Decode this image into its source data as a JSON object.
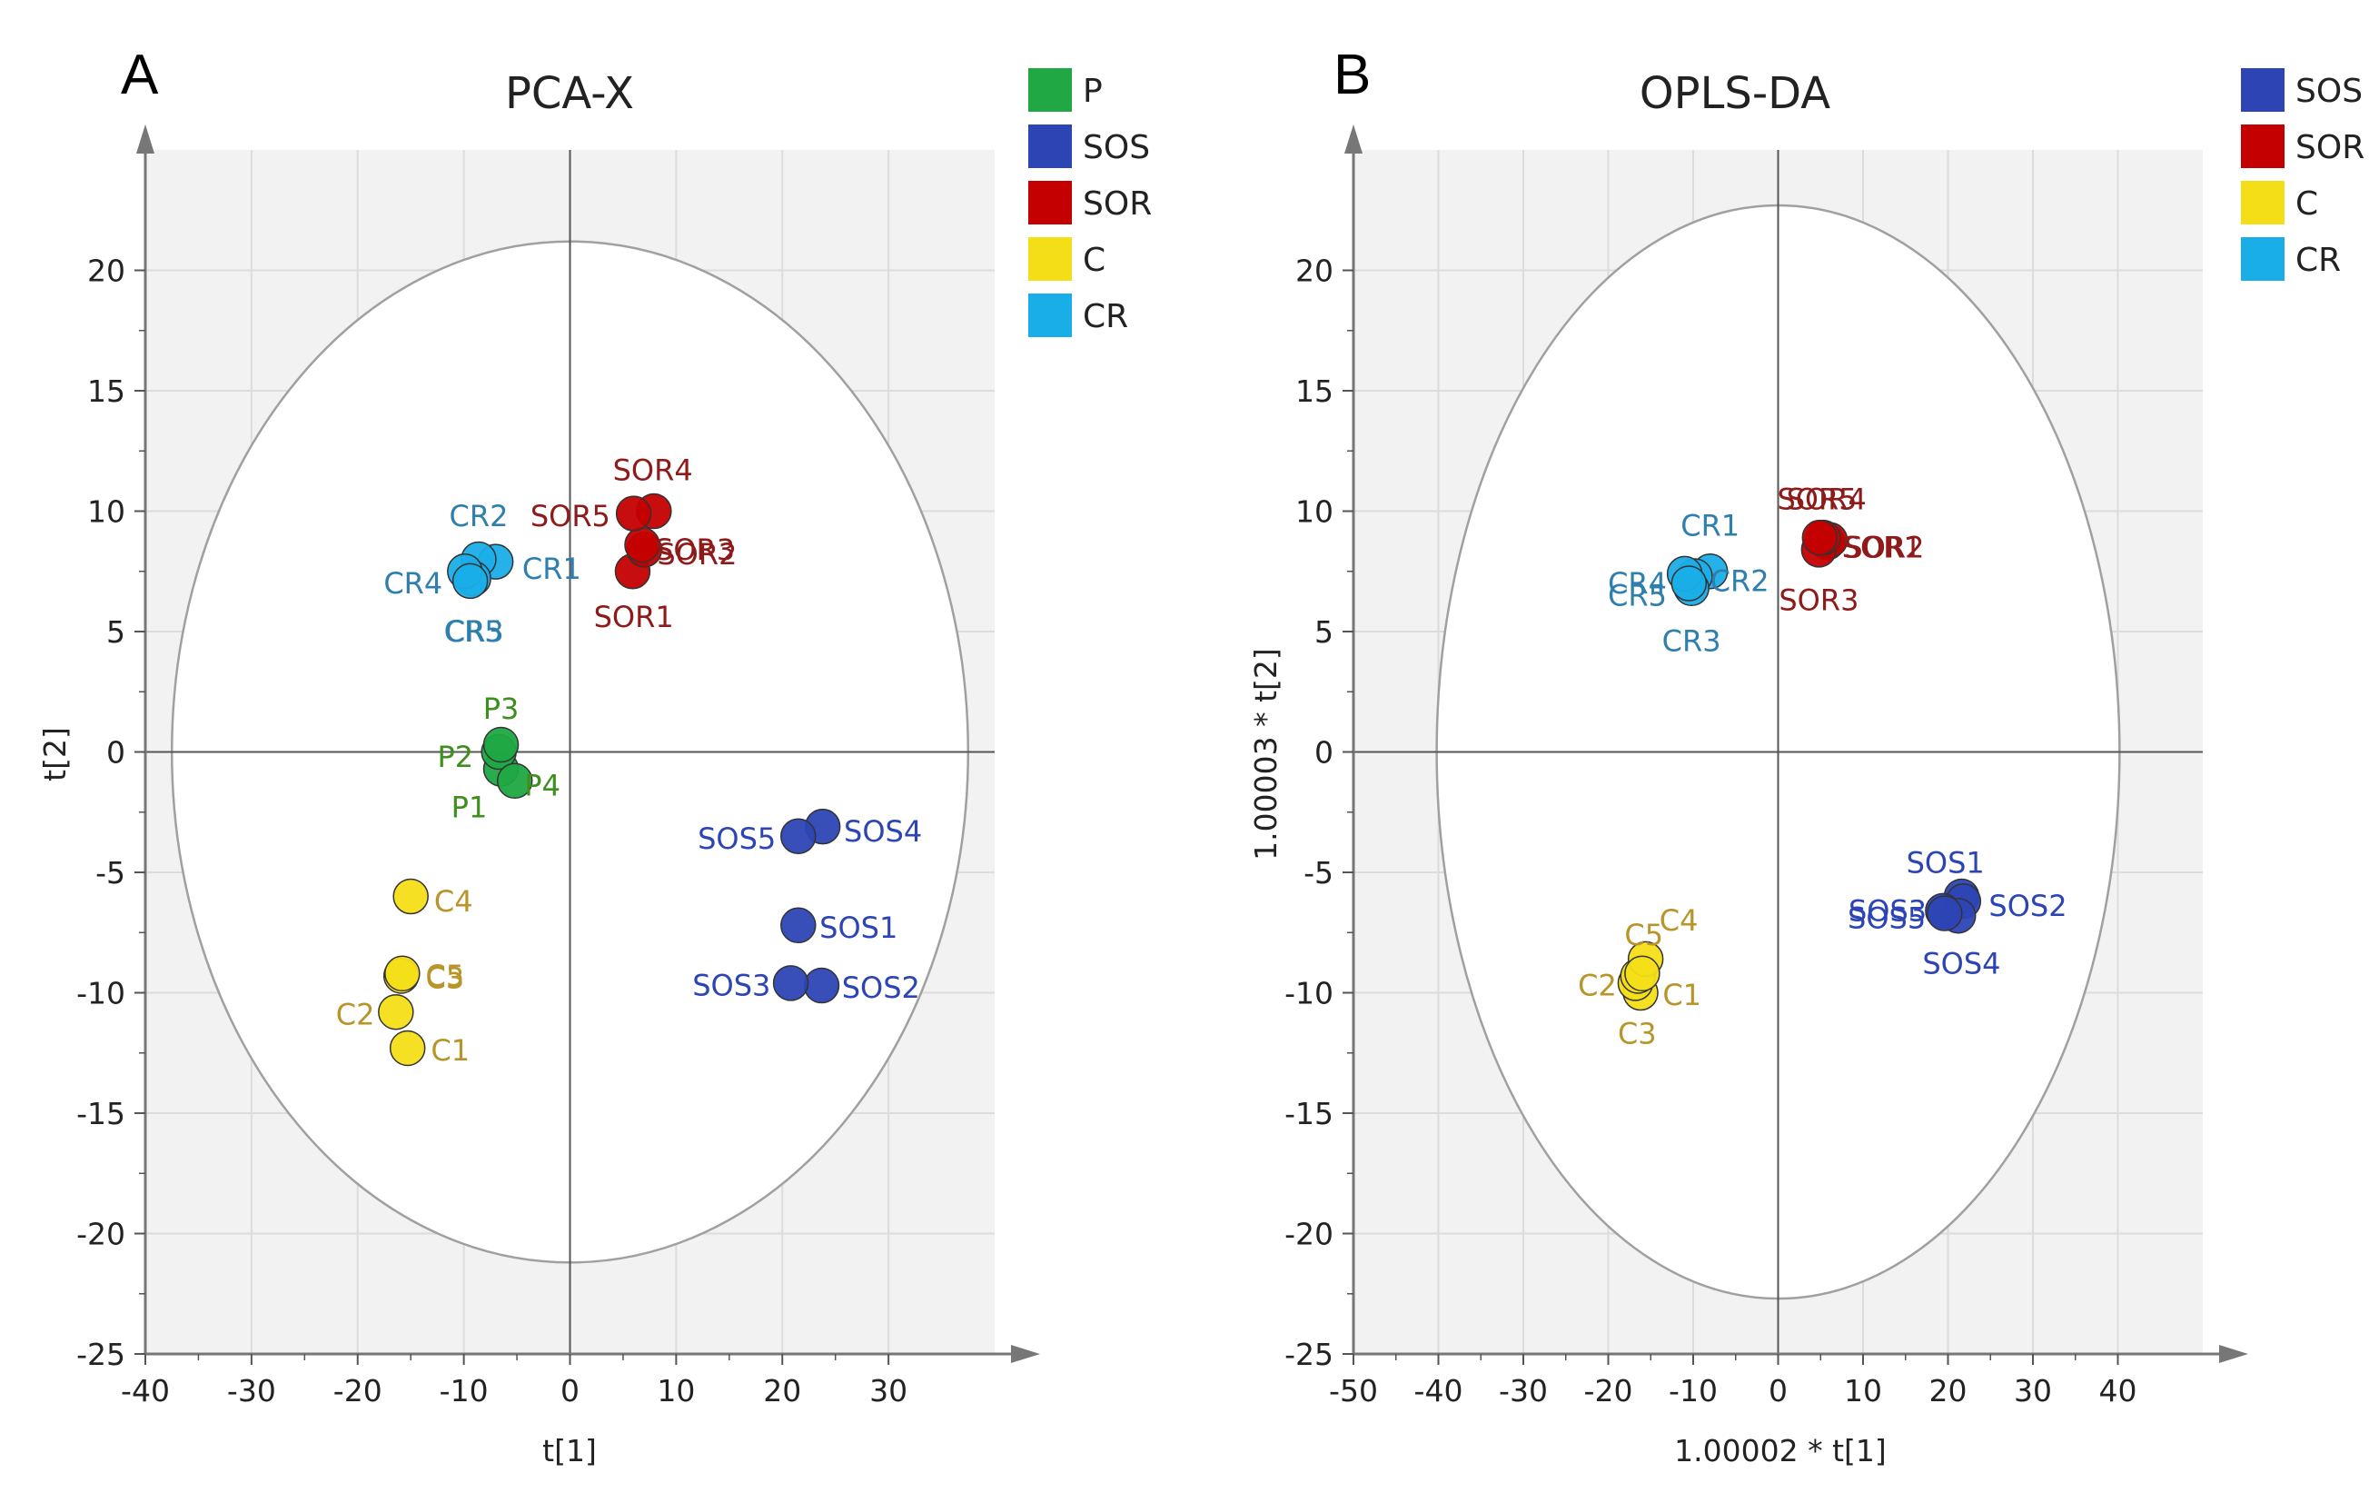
{
  "chart_data": [
    {
      "type": "scatter",
      "panel": "A",
      "title": "PCA-X",
      "xlabel": "t[1]",
      "ylabel": "t[2]",
      "xlim": [
        -40,
        40
      ],
      "ylim": [
        -25,
        25
      ],
      "xticks": [
        -40,
        -30,
        -20,
        -10,
        0,
        10,
        20,
        30
      ],
      "yticks": [
        -25,
        -20,
        -15,
        -10,
        -5,
        0,
        5,
        10,
        15,
        20
      ],
      "ellipse": {
        "rx": 37.5,
        "ry": 21.2
      },
      "grid": true,
      "legend": [
        {
          "label": "P",
          "color": "#1fa843"
        },
        {
          "label": "SOS",
          "color": "#2d44b5"
        },
        {
          "label": "SOR",
          "color": "#c40000"
        },
        {
          "label": "C",
          "color": "#f4de18"
        },
        {
          "label": "CR",
          "color": "#1aaee8"
        }
      ],
      "series": [
        {
          "name": "P",
          "color": "#1fa843",
          "label_color": "#3e8f1f",
          "points": [
            {
              "label": "P1",
              "x": -6.5,
              "y": -0.7,
              "lx": -9.5,
              "ly": -2.3,
              "anchor": "middle"
            },
            {
              "label": "P2",
              "x": -6.7,
              "y": 0.0,
              "lx": -10.8,
              "ly": -0.2,
              "anchor": "middle"
            },
            {
              "label": "P3",
              "x": -6.5,
              "y": 0.3,
              "lx": -6.5,
              "ly": 1.8,
              "anchor": "middle"
            },
            {
              "label": "P4",
              "x": -5.2,
              "y": -1.2,
              "lx": -2.6,
              "ly": -1.4,
              "anchor": "middle"
            }
          ]
        },
        {
          "name": "SOS",
          "color": "#2d44b5",
          "label_color": "#2d44b5",
          "points": [
            {
              "label": "SOS1",
              "x": 21.5,
              "y": -7.2,
              "lx": 23.5,
              "ly": -7.3,
              "anchor": "start"
            },
            {
              "label": "SOS2",
              "x": 23.7,
              "y": -9.7,
              "lx": 25.6,
              "ly": -9.8,
              "anchor": "start"
            },
            {
              "label": "SOS3",
              "x": 20.8,
              "y": -9.6,
              "lx": 18.9,
              "ly": -9.7,
              "anchor": "end"
            },
            {
              "label": "SOS4",
              "x": 23.8,
              "y": -3.1,
              "lx": 25.8,
              "ly": -3.3,
              "anchor": "start"
            },
            {
              "label": "SOS5",
              "x": 21.5,
              "y": -3.5,
              "lx": 19.4,
              "ly": -3.6,
              "anchor": "end"
            }
          ]
        },
        {
          "name": "SOR",
          "color": "#c40000",
          "label_color": "#8e1a1a",
          "points": [
            {
              "label": "SOR1",
              "x": 5.9,
              "y": 7.5,
              "lx": 6.0,
              "ly": 5.6,
              "anchor": "middle"
            },
            {
              "label": "SOR2",
              "x": 7.0,
              "y": 8.4,
              "lx": 8.2,
              "ly": 8.2,
              "anchor": "start"
            },
            {
              "label": "SOR3",
              "x": 6.8,
              "y": 8.6,
              "lx": 8.0,
              "ly": 8.4,
              "anchor": "start"
            },
            {
              "label": "SOR4",
              "x": 7.9,
              "y": 10.0,
              "lx": 7.8,
              "ly": 11.7,
              "anchor": "middle"
            },
            {
              "label": "SOR5",
              "x": 6.0,
              "y": 9.9,
              "lx": 3.8,
              "ly": 9.8,
              "anchor": "end"
            }
          ]
        },
        {
          "name": "C",
          "color": "#f4de18",
          "label_color": "#b8952a",
          "points": [
            {
              "label": "C1",
              "x": -15.3,
              "y": -12.3,
              "lx": -13.1,
              "ly": -12.4,
              "anchor": "start"
            },
            {
              "label": "C2",
              "x": -16.4,
              "y": -10.8,
              "lx": -18.4,
              "ly": -10.9,
              "anchor": "end"
            },
            {
              "label": "C3",
              "x": -15.9,
              "y": -9.3,
              "lx": -13.6,
              "ly": -9.4,
              "anchor": "start"
            },
            {
              "label": "C4",
              "x": -15.0,
              "y": -6.0,
              "lx": -12.8,
              "ly": -6.2,
              "anchor": "start"
            },
            {
              "label": "C5",
              "x": -15.8,
              "y": -9.2,
              "lx": -13.6,
              "ly": -9.3,
              "anchor": "start"
            }
          ]
        },
        {
          "name": "CR",
          "color": "#1aaee8",
          "label_color": "#2f7fae",
          "points": [
            {
              "label": "CR1",
              "x": -7.0,
              "y": 7.9,
              "lx": -4.5,
              "ly": 7.6,
              "anchor": "start"
            },
            {
              "label": "CR2",
              "x": -8.6,
              "y": 8.0,
              "lx": -8.6,
              "ly": 9.8,
              "anchor": "middle"
            },
            {
              "label": "CR3",
              "x": -9.1,
              "y": 7.2,
              "lx": -9.0,
              "ly": 5.0,
              "anchor": "middle"
            },
            {
              "label": "CR4",
              "x": -9.9,
              "y": 7.5,
              "lx": -12.0,
              "ly": 7.0,
              "anchor": "end"
            },
            {
              "label": "CR5",
              "x": -9.4,
              "y": 7.1,
              "lx": -9.1,
              "ly": 5.0,
              "anchor": "middle"
            }
          ]
        }
      ]
    },
    {
      "type": "scatter",
      "panel": "B",
      "title": "OPLS-DA",
      "xlabel": "1.00002 * t[1]",
      "ylabel": "1.00003 * t[2]",
      "xlim": [
        -50,
        50
      ],
      "ylim": [
        -25,
        25
      ],
      "xticks": [
        -50,
        -40,
        -30,
        -20,
        -10,
        0,
        10,
        20,
        30,
        40
      ],
      "yticks": [
        -25,
        -20,
        -15,
        -10,
        -5,
        0,
        5,
        10,
        15,
        20
      ],
      "ellipse": {
        "rx": 40.2,
        "ry": 22.7
      },
      "grid": true,
      "legend": [
        {
          "label": "SOS",
          "color": "#2d44b5"
        },
        {
          "label": "SOR",
          "color": "#c40000"
        },
        {
          "label": "C",
          "color": "#f4de18"
        },
        {
          "label": "CR",
          "color": "#1aaee8"
        }
      ],
      "series": [
        {
          "name": "SOS",
          "color": "#2d44b5",
          "label_color": "#2d44b5",
          "points": [
            {
              "label": "SOS1",
              "x": 21.6,
              "y": -6.0,
              "lx": 19.7,
              "ly": -4.6,
              "anchor": "middle"
            },
            {
              "label": "SOS2",
              "x": 21.8,
              "y": -6.2,
              "lx": 24.8,
              "ly": -6.4,
              "anchor": "start"
            },
            {
              "label": "SOS3",
              "x": 19.4,
              "y": -6.6,
              "lx": 17.5,
              "ly": -6.6,
              "anchor": "end"
            },
            {
              "label": "SOS4",
              "x": 21.2,
              "y": -6.8,
              "lx": 21.6,
              "ly": -8.8,
              "anchor": "middle"
            },
            {
              "label": "SOS5",
              "x": 19.6,
              "y": -6.7,
              "lx": 17.4,
              "ly": -6.9,
              "anchor": "end"
            }
          ]
        },
        {
          "name": "SOR",
          "color": "#c40000",
          "label_color": "#8e1a1a",
          "points": [
            {
              "label": "SOR1",
              "x": 5.8,
              "y": 8.7,
              "lx": 7.5,
              "ly": 8.5,
              "anchor": "start"
            },
            {
              "label": "SOR2",
              "x": 6.1,
              "y": 8.8,
              "lx": 7.8,
              "ly": 8.5,
              "anchor": "start"
            },
            {
              "label": "SOR3",
              "x": 4.8,
              "y": 8.4,
              "lx": 4.8,
              "ly": 6.3,
              "anchor": "middle"
            },
            {
              "label": "SOR4",
              "x": 5.3,
              "y": 8.9,
              "lx": 5.7,
              "ly": 10.5,
              "anchor": "middle"
            },
            {
              "label": "SOR5",
              "x": 4.9,
              "y": 8.9,
              "lx": 4.6,
              "ly": 10.5,
              "anchor": "middle"
            }
          ]
        },
        {
          "name": "C",
          "color": "#f4de18",
          "label_color": "#b8952a",
          "points": [
            {
              "label": "C1",
              "x": -16.2,
              "y": -10.0,
              "lx": -13.6,
              "ly": -10.1,
              "anchor": "start"
            },
            {
              "label": "C2",
              "x": -16.8,
              "y": -9.6,
              "lx": -19.0,
              "ly": -9.7,
              "anchor": "end"
            },
            {
              "label": "C3",
              "x": -16.5,
              "y": -9.3,
              "lx": -16.6,
              "ly": -11.7,
              "anchor": "middle"
            },
            {
              "label": "C4",
              "x": -15.6,
              "y": -8.6,
              "lx": -11.7,
              "ly": -7.0,
              "anchor": "middle"
            },
            {
              "label": "C5",
              "x": -16.0,
              "y": -9.2,
              "lx": -15.8,
              "ly": -7.6,
              "anchor": "middle"
            }
          ]
        },
        {
          "name": "CR",
          "color": "#1aaee8",
          "label_color": "#2f7fae",
          "points": [
            {
              "label": "CR1",
              "x": -8.0,
              "y": 7.5,
              "lx": -8.0,
              "ly": 9.4,
              "anchor": "middle"
            },
            {
              "label": "CR2",
              "x": -9.8,
              "y": 7.3,
              "lx": -8.0,
              "ly": 7.1,
              "anchor": "start"
            },
            {
              "label": "CR3",
              "x": -10.2,
              "y": 6.8,
              "lx": -10.2,
              "ly": 4.6,
              "anchor": "middle"
            },
            {
              "label": "CR4",
              "x": -11.0,
              "y": 7.4,
              "lx": -13.1,
              "ly": 7.0,
              "anchor": "end"
            },
            {
              "label": "CR5",
              "x": -10.5,
              "y": 7.0,
              "lx": -13.1,
              "ly": 6.5,
              "anchor": "end"
            }
          ]
        }
      ]
    }
  ]
}
